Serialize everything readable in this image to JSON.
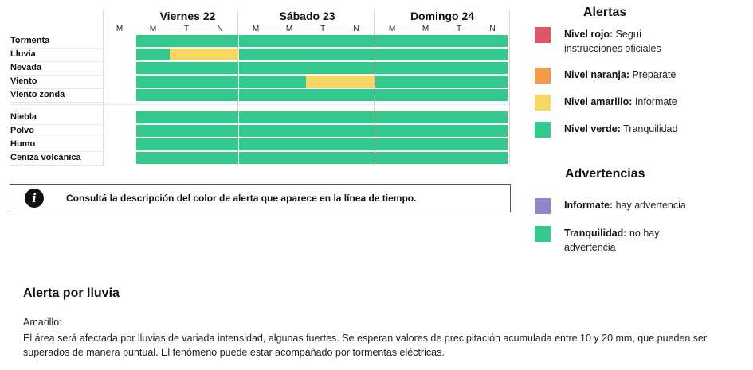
{
  "timeline": {
    "days": [
      "Viernes 22",
      "Sábado 23",
      "Domingo 24"
    ],
    "slots": [
      "M",
      "M",
      "T",
      "N"
    ],
    "rows": [
      {
        "label": "Tormenta",
        "levels": [
          "none",
          "verde",
          "verde",
          "verde",
          "verde",
          "verde",
          "verde",
          "verde",
          "verde",
          "verde",
          "verde",
          "verde"
        ]
      },
      {
        "label": "Lluvia",
        "levels": [
          "none",
          "verde",
          "amarillo",
          "amarillo",
          "verde",
          "verde",
          "verde",
          "verde",
          "verde",
          "verde",
          "verde",
          "verde"
        ]
      },
      {
        "label": "Nevada",
        "levels": [
          "none",
          "verde",
          "verde",
          "verde",
          "verde",
          "verde",
          "verde",
          "verde",
          "verde",
          "verde",
          "verde",
          "verde"
        ]
      },
      {
        "label": "Viento",
        "levels": [
          "none",
          "verde",
          "verde",
          "verde",
          "verde",
          "verde",
          "amarillo",
          "amarillo",
          "verde",
          "verde",
          "verde",
          "verde"
        ]
      },
      {
        "label": "Viento zonda",
        "levels": [
          "none",
          "verde",
          "verde",
          "verde",
          "verde",
          "verde",
          "verde",
          "verde",
          "verde",
          "verde",
          "verde",
          "verde"
        ]
      },
      {
        "label": "Niebla",
        "levels": [
          "none",
          "verde",
          "verde",
          "verde",
          "verde",
          "verde",
          "verde",
          "verde",
          "verde",
          "verde",
          "verde",
          "verde"
        ]
      },
      {
        "label": "Polvo",
        "levels": [
          "none",
          "verde",
          "verde",
          "verde",
          "verde",
          "verde",
          "verde",
          "verde",
          "verde",
          "verde",
          "verde",
          "verde"
        ]
      },
      {
        "label": "Humo",
        "levels": [
          "none",
          "verde",
          "verde",
          "verde",
          "verde",
          "verde",
          "verde",
          "verde",
          "verde",
          "verde",
          "verde",
          "verde"
        ]
      },
      {
        "label": "Ceniza volcánica",
        "levels": [
          "none",
          "verde",
          "verde",
          "verde",
          "verde",
          "verde",
          "verde",
          "verde",
          "verde",
          "verde",
          "verde",
          "verde"
        ]
      }
    ]
  },
  "colors": {
    "rojo": "#e05565",
    "naranja": "#f2994a",
    "amarillo": "#f8d664",
    "verde": "#33c98d",
    "violeta": "#8c86c8"
  },
  "info_box": {
    "icon": "info-icon",
    "text": "Consultá la descripción del color de alerta que aparece en la línea de tiempo."
  },
  "legend": {
    "alerts_title": "Alertas",
    "alerts": [
      {
        "color": "rojo",
        "label": "Nivel rojo:",
        "text": " Seguí instrucciones oficiales"
      },
      {
        "color": "naranja",
        "label": "Nivel naranja:",
        "text": " Preparate"
      },
      {
        "color": "amarillo",
        "label": "Nivel amarillo:",
        "text": " Informate"
      },
      {
        "color": "verde",
        "label": "Nivel verde:",
        "text": " Tranquilidad"
      }
    ],
    "warnings_title": "Advertencias",
    "warnings": [
      {
        "color": "violeta",
        "label": "Informate:",
        "text": " hay advertencia"
      },
      {
        "color": "verde",
        "label": "Tranquilidad:",
        "text": " no hay advertencia"
      }
    ]
  },
  "description": {
    "title": "Alerta por lluvia",
    "level": "Amarillo:",
    "body": "El área será afectada por lluvias de variada intensidad, algunas fuertes. Se esperan valores de precipitación acumulada entre 10 y 20 mm, que pueden ser superados de manera puntual. El fenómeno puede estar acompañado por tormentas eléctricas."
  }
}
